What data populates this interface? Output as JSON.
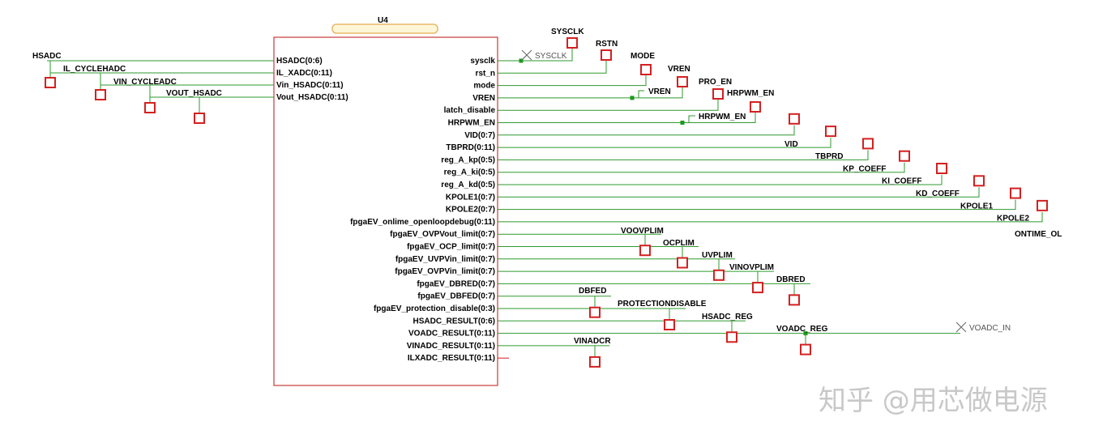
{
  "component": {
    "ref": "U4",
    "inputs": [
      "HSADC(0:6)",
      "IL_XADC(0:11)",
      "Vin_HSADC(0:11)",
      "Vout_HSADC(0:11)"
    ],
    "outputs": [
      "sysclk",
      "rst_n",
      "mode",
      "VREN",
      "latch_disable",
      "HRPWM_EN",
      "VID(0:7)",
      "TBPRD(0:11)",
      "reg_A_kp(0:5)",
      "reg_A_ki(0:5)",
      "reg_A_kd(0:5)",
      "KPOLE1(0:7)",
      "KPOLE2(0:7)",
      "fpgaEV_onlime_openloopdebug(0:11)",
      "fpgaEV_OVPVout_limit(0:7)",
      "fpgaEV_OCP_limit(0:7)",
      "fpgaEV_UVPVin_limit(0:7)",
      "fpgaEV_OVPVin_limit(0:7)",
      "fpgaEV_DBRED(0:7)",
      "fpgaEV_DBFED(0:7)",
      "fpgaEV_protection_disable(0:3)",
      "HSADC_RESULT(0:6)",
      "VOADC_RESULT(0:11)",
      "VINADC_RESULT(0:11)",
      "ILXADC_RESULT(0:11)"
    ]
  },
  "left_ports": [
    "HSADC",
    "IL_CYCLEHADC",
    "VIN_CYCLEADC",
    "VOUT_HSADC"
  ],
  "right_ports": [
    "SYSCLK",
    "RSTN",
    "MODE",
    "VREN",
    "PRO_EN",
    "HRPWM_EN",
    "VID",
    "TBPRD",
    "KP_COEFF",
    "KI_COEFF",
    "KD_COEFF",
    "KPOLE1",
    "KPOLE2",
    "ONTIME_OL",
    "VOOVPLIM",
    "OCPLIM",
    "UVPLIM",
    "VINOVPLIM",
    "DBRED",
    "DBFED",
    "PROTECTIONDISABLE",
    "HSADC_REG",
    "VOADC_REG",
    "VINADCR"
  ],
  "offpage": [
    "SYSCLK",
    "VREN",
    "HRPWM_EN",
    "VOADC_IN"
  ],
  "watermark": "知乎 @用芯做电源",
  "colors": {
    "wire": "#2e9a2e",
    "port": "#d42020",
    "border": "#c83a3a",
    "junction": "#1a9a1a"
  }
}
